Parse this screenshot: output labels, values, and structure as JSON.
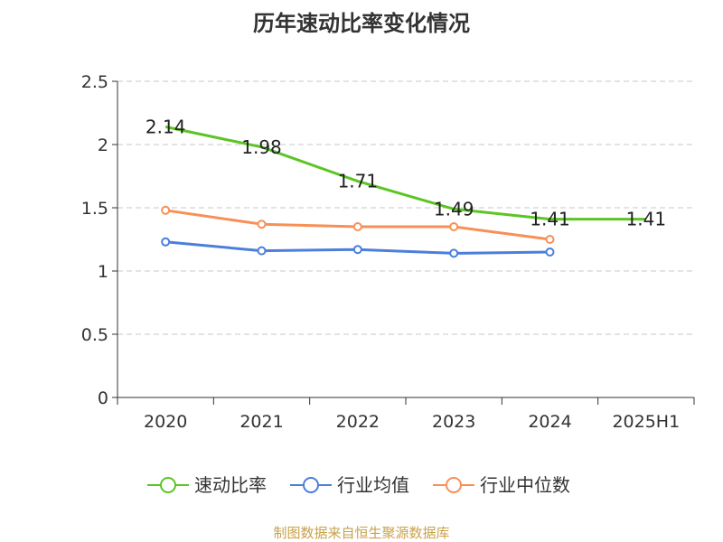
{
  "chart_data": {
    "type": "line",
    "title": "历年速动比率变化情况",
    "categories": [
      "2020",
      "2021",
      "2022",
      "2023",
      "2024",
      "2025H1"
    ],
    "ylim": [
      0,
      2.5
    ],
    "yticks": [
      "0",
      "0.5",
      "1",
      "1.5",
      "2",
      "2.5"
    ],
    "grid": true,
    "legend_position": "bottom",
    "series": [
      {
        "name": "速动比率",
        "color": "#5cc524",
        "values": [
          2.14,
          1.98,
          1.71,
          1.49,
          1.41,
          1.41
        ],
        "labels": [
          "2.14",
          "1.98",
          "1.71",
          "1.49",
          "1.41",
          "1.41"
        ],
        "show_labels": true
      },
      {
        "name": "行业均值",
        "color": "#4b7fdb",
        "values": [
          1.23,
          1.16,
          1.17,
          1.14,
          1.15,
          null
        ],
        "show_labels": false
      },
      {
        "name": "行业中位数",
        "color": "#f79057",
        "values": [
          1.48,
          1.37,
          1.35,
          1.35,
          1.25,
          null
        ],
        "show_labels": false
      }
    ]
  },
  "source_text": "制图数据来自恒生聚源数据库"
}
